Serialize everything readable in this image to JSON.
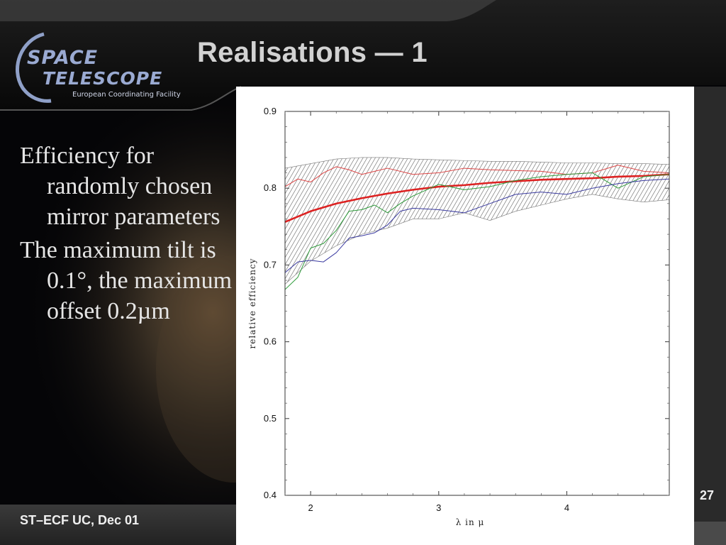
{
  "slide": {
    "title": "Realisations — 1",
    "logo": {
      "line1": "SPACE",
      "line2": "TELESCOPE",
      "line3": "European Coordinating Facility"
    },
    "bullets": [
      "Efficiency for randomly chosen mirror parameters",
      "The maximum tilt is  0.1°, the maximum offset 0.2µm"
    ],
    "footer": "ST–ECF UC, Dec 01",
    "page_number": "27"
  },
  "colors": {
    "background": "#000000",
    "title": "#d2d2d2",
    "logo": "#8fa0c8",
    "series_mean": "#dd2222",
    "series_upper": "#dd4444",
    "series_green": "#2e9b3a",
    "series_blue": "#3a3aa0",
    "band": "#555555"
  },
  "chart_data": {
    "type": "line",
    "xlabel": "λ in μ",
    "ylabel": "relative efficiency",
    "xlim": [
      1.8,
      4.8
    ],
    "ylim": [
      0.4,
      0.9
    ],
    "x_ticks": [
      2,
      3,
      4
    ],
    "y_ticks": [
      0.4,
      0.5,
      0.6,
      0.7,
      0.8,
      0.9
    ],
    "y_tick_labels": [
      "0.4",
      "0.5",
      "0.6",
      "0.7",
      "0.8",
      "0.9"
    ],
    "grid": false,
    "band": {
      "x": [
        1.8,
        2.0,
        2.2,
        2.4,
        2.6,
        2.8,
        3.0,
        3.2,
        3.4,
        3.6,
        3.8,
        4.0,
        4.2,
        4.4,
        4.6,
        4.8
      ],
      "upper": [
        0.826,
        0.832,
        0.838,
        0.84,
        0.84,
        0.838,
        0.837,
        0.836,
        0.835,
        0.835,
        0.834,
        0.833,
        0.833,
        0.832,
        0.832,
        0.831
      ],
      "lower": [
        0.675,
        0.705,
        0.725,
        0.74,
        0.748,
        0.76,
        0.76,
        0.768,
        0.758,
        0.77,
        0.778,
        0.786,
        0.792,
        0.786,
        0.782,
        0.785
      ]
    },
    "series": [
      {
        "x": [
          1.8,
          2.0,
          2.2,
          2.4,
          2.6,
          2.8,
          3.0,
          3.2,
          3.4,
          3.6,
          3.8,
          4.0,
          4.2,
          4.4,
          4.6,
          4.8
        ],
        "values": [
          0.756,
          0.77,
          0.78,
          0.787,
          0.793,
          0.798,
          0.802,
          0.804,
          0.807,
          0.809,
          0.811,
          0.812,
          0.813,
          0.815,
          0.816,
          0.818
        ],
        "style": "bold"
      },
      {
        "x": [
          1.8,
          1.9,
          2.0,
          2.1,
          2.2,
          2.3,
          2.4,
          2.5,
          2.6,
          2.8,
          3.0,
          3.2,
          3.4,
          3.6,
          3.8,
          4.0,
          4.2,
          4.4,
          4.6,
          4.8
        ],
        "values": [
          0.802,
          0.812,
          0.808,
          0.82,
          0.828,
          0.824,
          0.818,
          0.822,
          0.826,
          0.818,
          0.82,
          0.826,
          0.824,
          0.823,
          0.822,
          0.818,
          0.82,
          0.83,
          0.822,
          0.82
        ]
      },
      {
        "x": [
          1.8,
          1.9,
          2.0,
          2.1,
          2.2,
          2.3,
          2.4,
          2.5,
          2.6,
          2.7,
          2.8,
          3.0,
          3.2,
          3.4,
          3.6,
          3.8,
          4.0,
          4.2,
          4.4,
          4.6,
          4.8
        ],
        "values": [
          0.668,
          0.684,
          0.722,
          0.728,
          0.745,
          0.77,
          0.772,
          0.778,
          0.768,
          0.78,
          0.79,
          0.805,
          0.798,
          0.802,
          0.81,
          0.815,
          0.818,
          0.82,
          0.8,
          0.815,
          0.818
        ]
      },
      {
        "x": [
          1.8,
          1.9,
          2.0,
          2.1,
          2.2,
          2.3,
          2.4,
          2.5,
          2.6,
          2.7,
          2.8,
          3.0,
          3.2,
          3.4,
          3.6,
          3.8,
          4.0,
          4.2,
          4.4,
          4.6,
          4.8
        ],
        "values": [
          0.69,
          0.704,
          0.706,
          0.704,
          0.716,
          0.735,
          0.738,
          0.742,
          0.752,
          0.77,
          0.774,
          0.772,
          0.768,
          0.78,
          0.792,
          0.795,
          0.792,
          0.8,
          0.806,
          0.81,
          0.812
        ]
      }
    ]
  }
}
